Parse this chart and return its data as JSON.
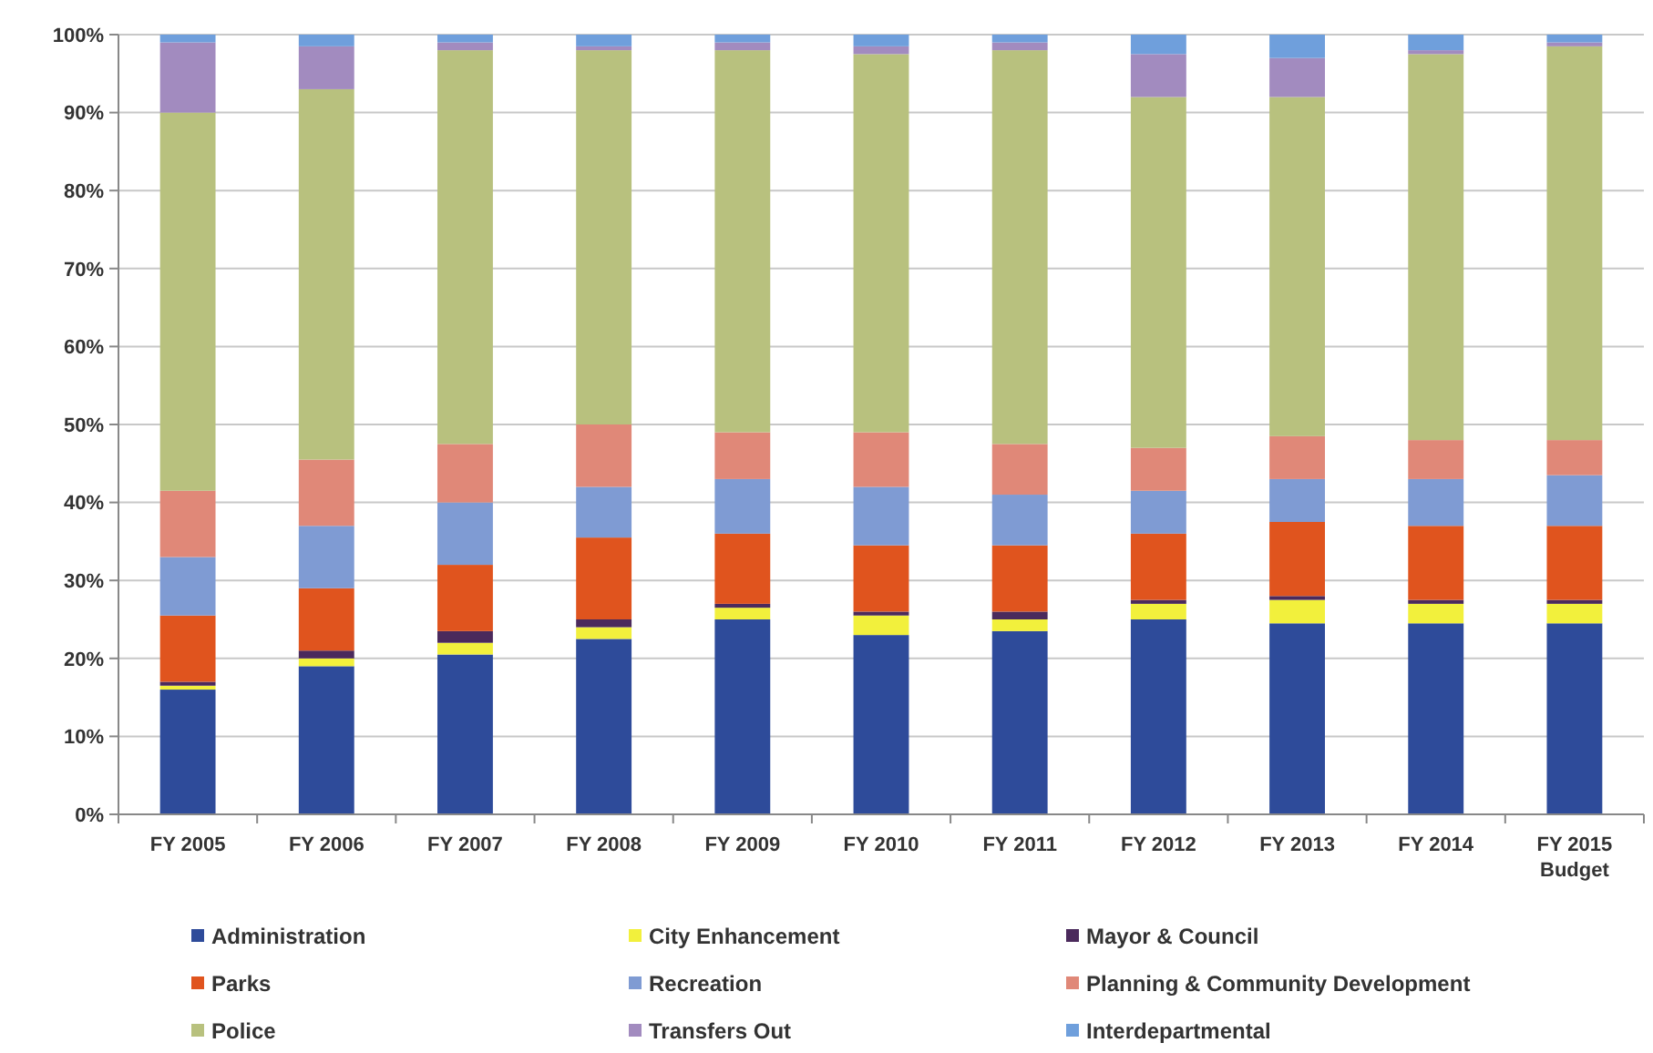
{
  "chart_data": {
    "type": "bar",
    "stacked": true,
    "categories": [
      "FY 2005",
      "FY 2006",
      "FY 2007",
      "FY 2008",
      "FY 2009",
      "FY 2010",
      "FY 2011",
      "FY 2012",
      "FY 2013",
      "FY 2014",
      "FY 2015 Budget"
    ],
    "series": [
      {
        "name": "Administration",
        "color": "#2e4b9a",
        "values": [
          16,
          19,
          20.5,
          22.5,
          25,
          23,
          23.5,
          25,
          24.5,
          24.5,
          24.5
        ]
      },
      {
        "name": "City Enhancement",
        "color": "#f2f03c",
        "values": [
          0.5,
          1,
          1.5,
          1.5,
          1.5,
          2.5,
          1.5,
          2,
          3,
          2.5,
          2.5
        ]
      },
      {
        "name": "Mayor & Council",
        "color": "#4b2a5c",
        "values": [
          0.5,
          1,
          1.5,
          1,
          0.5,
          0.5,
          1,
          0.5,
          0.5,
          0.5,
          0.5
        ]
      },
      {
        "name": "Parks",
        "color": "#e0541e",
        "values": [
          8.5,
          8,
          8.5,
          10.5,
          9,
          8.5,
          8.5,
          8.5,
          9.5,
          9.5,
          9.5
        ]
      },
      {
        "name": "Recreation",
        "color": "#7f9bd3",
        "values": [
          7.5,
          8,
          8,
          6.5,
          7,
          7.5,
          6.5,
          5.5,
          5.5,
          6,
          6.5
        ]
      },
      {
        "name": "Planning & Community Development",
        "color": "#e08878",
        "values": [
          8.5,
          8.5,
          7.5,
          8,
          6,
          7,
          6.5,
          5.5,
          5.5,
          5,
          4.5
        ]
      },
      {
        "name": "Police",
        "color": "#b8c17e",
        "values": [
          48.5,
          47.5,
          50.5,
          48,
          49,
          48.5,
          50.5,
          45,
          43.5,
          49.5,
          50.5
        ]
      },
      {
        "name": "Transfers Out",
        "color": "#a28bbf",
        "values": [
          9,
          5.5,
          1,
          0.5,
          1,
          1,
          1,
          5.5,
          5,
          0.5,
          0.5
        ]
      },
      {
        "name": "Interdepartmental",
        "color": "#6f9fdc",
        "values": [
          1,
          1.5,
          1,
          1.5,
          1,
          1.5,
          1,
          2.5,
          3,
          2,
          1
        ]
      }
    ],
    "ylim": [
      0,
      100
    ],
    "yticks": [
      {
        "value": 0,
        "label": "0%"
      },
      {
        "value": 10,
        "label": "10%"
      },
      {
        "value": 20,
        "label": "20%"
      },
      {
        "value": 30,
        "label": "30%"
      },
      {
        "value": 40,
        "label": "40%"
      },
      {
        "value": 50,
        "label": "50%"
      },
      {
        "value": 60,
        "label": "60%"
      },
      {
        "value": 70,
        "label": "70%"
      },
      {
        "value": 80,
        "label": "80%"
      },
      {
        "value": 90,
        "label": "90%"
      },
      {
        "value": 100,
        "label": "100%"
      }
    ],
    "grid": "y",
    "legend": "bottom"
  }
}
